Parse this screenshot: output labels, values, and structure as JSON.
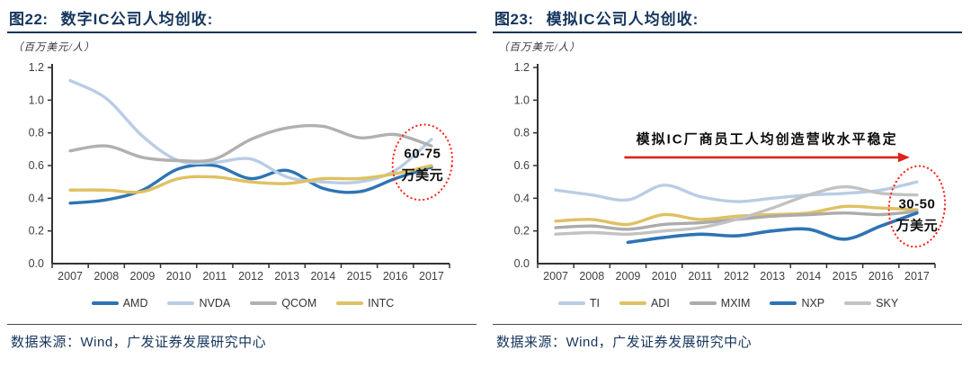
{
  "style": {
    "navy": "#16365c",
    "axis_color": "#333333",
    "tick_text_color": "#3f3f3f",
    "annotation_text_color": "#0d0d0d",
    "arrow_red": "#d9261c",
    "ellipse_red": "#ff2016",
    "background": "#ffffff"
  },
  "panels": [
    {
      "figure_label": "图22:",
      "title": "数字IC公司人均创收:",
      "unit_label": "（百万美元/人）",
      "source": "数据来源：Wind，广发证券发展研究中心"
    },
    {
      "figure_label": "图23:",
      "title": "模拟IC公司人均创收:",
      "unit_label": "（百万美元/人）",
      "source": "数据来源：Wind，广发证券发展研究中心"
    }
  ],
  "chart_data": [
    {
      "type": "line",
      "title": "数字IC公司人均创收",
      "ylabel": "百万美元/人",
      "x": [
        2007,
        2008,
        2009,
        2010,
        2011,
        2012,
        2013,
        2014,
        2015,
        2016,
        2017
      ],
      "ylim": [
        0,
        1.2
      ],
      "ytick_step": 0.2,
      "grid": false,
      "legend_position": "bottom",
      "series": [
        {
          "name": "AMD",
          "color": "#2d74b4",
          "width": 3.4,
          "values": [
            0.37,
            0.39,
            0.45,
            0.58,
            0.6,
            0.52,
            0.57,
            0.46,
            0.44,
            0.52,
            0.59
          ]
        },
        {
          "name": "NVDA",
          "color": "#b9cde4",
          "width": 3.4,
          "values": [
            1.12,
            1.01,
            0.78,
            0.63,
            0.62,
            0.64,
            0.53,
            0.5,
            0.5,
            0.57,
            0.76
          ]
        },
        {
          "name": "QCOM",
          "color": "#b0b0b0",
          "width": 3.4,
          "values": [
            0.69,
            0.72,
            0.65,
            0.63,
            0.64,
            0.76,
            0.83,
            0.84,
            0.77,
            0.79,
            0.72
          ]
        },
        {
          "name": "INTC",
          "color": "#dfc162",
          "width": 3.4,
          "values": [
            0.45,
            0.45,
            0.44,
            0.52,
            0.53,
            0.5,
            0.49,
            0.52,
            0.52,
            0.55,
            0.6
          ]
        }
      ],
      "annotations": {
        "ellipse": {
          "year": 2016.75,
          "value": 0.62,
          "rx": 33,
          "ry": 42,
          "rotate": 8,
          "lines": [
            "60-75",
            "万美元"
          ],
          "line_dy": [
            -5,
            19
          ]
        }
      }
    },
    {
      "type": "line",
      "title": "模拟IC公司人均创收",
      "ylabel": "百万美元/人",
      "x": [
        2007,
        2008,
        2009,
        2010,
        2011,
        2012,
        2013,
        2014,
        2015,
        2016,
        2017
      ],
      "ylim": [
        0,
        1.2
      ],
      "ytick_step": 0.2,
      "grid": false,
      "legend_position": "bottom",
      "series": [
        {
          "name": "TI",
          "color": "#b9cde4",
          "width": 3.4,
          "values": [
            0.45,
            0.42,
            0.39,
            0.48,
            0.41,
            0.38,
            0.4,
            0.42,
            0.43,
            0.45,
            0.5
          ]
        },
        {
          "name": "ADI",
          "color": "#dfc162",
          "width": 3.4,
          "values": [
            0.26,
            0.27,
            0.24,
            0.3,
            0.27,
            0.29,
            0.3,
            0.31,
            0.35,
            0.34,
            0.33
          ]
        },
        {
          "name": "MXIM",
          "color": "#ababab",
          "width": 3.4,
          "values": [
            0.22,
            0.23,
            0.21,
            0.24,
            0.25,
            0.27,
            0.29,
            0.3,
            0.31,
            0.3,
            0.32
          ]
        },
        {
          "name": "NXP",
          "color": "#2d74b4",
          "width": 3.6,
          "values": [
            null,
            null,
            0.13,
            0.16,
            0.18,
            0.17,
            0.2,
            0.21,
            0.15,
            0.23,
            0.31
          ]
        },
        {
          "name": "SKY",
          "color": "#c2c2c2",
          "width": 3.4,
          "values": [
            0.18,
            0.19,
            0.18,
            0.2,
            0.22,
            0.27,
            0.34,
            0.42,
            0.47,
            0.43,
            0.42
          ]
        }
      ],
      "annotations": {
        "ellipse": {
          "year": 2017.0,
          "value": 0.35,
          "rx": 31,
          "ry": 45,
          "rotate": 6,
          "lines": [
            "30-50",
            "万美元"
          ],
          "line_dy": [
            2,
            26
          ]
        },
        "arrow": {
          "text": "模拟IC厂商员工人均创造营收水平稳定",
          "value": 0.65,
          "text_value": 0.735,
          "year_from": 2008.9,
          "year_to": 2016.8
        }
      }
    }
  ]
}
